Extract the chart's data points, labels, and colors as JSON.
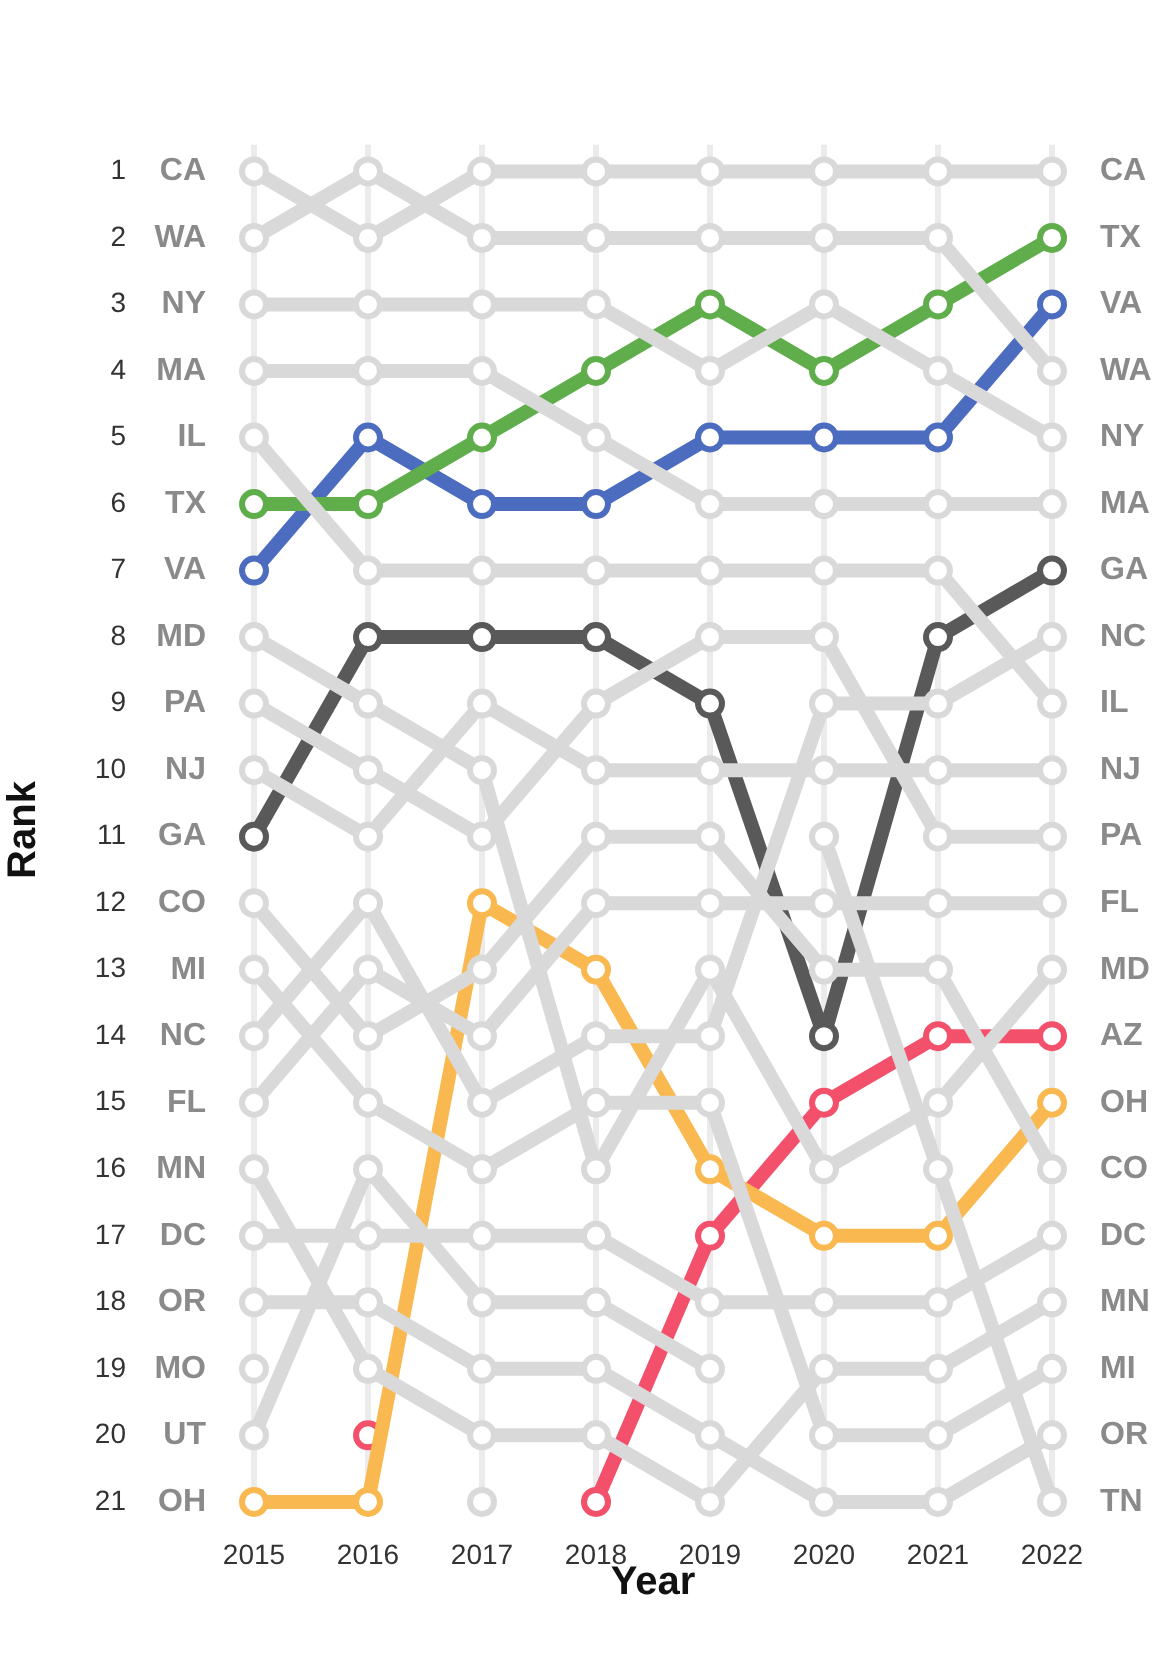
{
  "chart_data": {
    "type": "line",
    "xlabel": "Year",
    "ylabel": "Rank",
    "categories": [
      "2015",
      "2016",
      "2017",
      "2018",
      "2019",
      "2020",
      "2021",
      "2022"
    ],
    "ylim": [
      21.2,
      0.6
    ],
    "yticks": [
      1,
      2,
      3,
      4,
      5,
      6,
      7,
      8,
      9,
      10,
      11,
      12,
      13,
      14,
      15,
      16,
      17,
      18,
      19,
      20,
      21
    ],
    "grid": "x",
    "legend": false,
    "marker": "circle",
    "line_style": "solid",
    "series": [
      {
        "name": "CA",
        "color": "#d9d9d9",
        "values": [
          1,
          2,
          1,
          1,
          1,
          1,
          1,
          1
        ]
      },
      {
        "name": "WA",
        "color": "#d9d9d9",
        "values": [
          2,
          1,
          2,
          2,
          2,
          2,
          2,
          4
        ]
      },
      {
        "name": "NY",
        "color": "#d9d9d9",
        "values": [
          3,
          3,
          3,
          3,
          4,
          3,
          4,
          5
        ]
      },
      {
        "name": "MA",
        "color": "#d9d9d9",
        "values": [
          4,
          4,
          4,
          5,
          6,
          6,
          6,
          6
        ]
      },
      {
        "name": "IL",
        "color": "#d9d9d9",
        "values": [
          5,
          7,
          7,
          7,
          7,
          7,
          7,
          9
        ]
      },
      {
        "name": "MD",
        "color": "#d9d9d9",
        "values": [
          8,
          9,
          10,
          16,
          13,
          16,
          15,
          13
        ]
      },
      {
        "name": "PA",
        "color": "#d9d9d9",
        "values": [
          9,
          10,
          11,
          9,
          8,
          8,
          11,
          11
        ]
      },
      {
        "name": "NJ",
        "color": "#d9d9d9",
        "values": [
          10,
          11,
          9,
          10,
          10,
          10,
          10,
          10
        ]
      },
      {
        "name": "CO",
        "color": "#d9d9d9",
        "values": [
          12,
          14,
          13,
          11,
          11,
          13,
          13,
          16
        ]
      },
      {
        "name": "MI",
        "color": "#d9d9d9",
        "values": [
          13,
          15,
          16,
          15,
          15,
          20,
          20,
          19
        ]
      },
      {
        "name": "NC",
        "color": "#d9d9d9",
        "values": [
          14,
          12,
          15,
          14,
          14,
          9,
          9,
          8
        ]
      },
      {
        "name": "FL",
        "color": "#d9d9d9",
        "values": [
          15,
          13,
          14,
          12,
          12,
          12,
          12,
          12
        ]
      },
      {
        "name": "MN",
        "color": "#d9d9d9",
        "values": [
          16,
          19,
          20,
          20,
          21,
          19,
          19,
          18
        ]
      },
      {
        "name": "DC",
        "color": "#d9d9d9",
        "values": [
          17,
          17,
          17,
          17,
          18,
          18,
          18,
          17
        ]
      },
      {
        "name": "OR",
        "color": "#d9d9d9",
        "values": [
          18,
          18,
          19,
          19,
          20,
          21,
          21,
          20
        ]
      },
      {
        "name": "MO",
        "color": "#d9d9d9",
        "values": [
          19,
          null,
          21,
          null,
          null,
          null,
          null,
          null
        ]
      },
      {
        "name": "UT",
        "color": "#d9d9d9",
        "values": [
          20,
          16,
          18,
          18,
          19,
          null,
          null,
          null
        ]
      },
      {
        "name": "TN",
        "color": "#d9d9d9",
        "values": [
          null,
          null,
          null,
          null,
          null,
          11,
          16,
          21
        ]
      },
      {
        "name": "TX",
        "color": "#5fae4b",
        "values": [
          6,
          6,
          5,
          4,
          3,
          4,
          3,
          2
        ]
      },
      {
        "name": "VA",
        "color": "#4c6cc0",
        "values": [
          7,
          5,
          6,
          6,
          5,
          5,
          5,
          3
        ]
      },
      {
        "name": "GA",
        "color": "#595959",
        "values": [
          11,
          8,
          8,
          8,
          9,
          14,
          8,
          7
        ]
      },
      {
        "name": "OH",
        "color": "#f9b950",
        "values": [
          21,
          21,
          12,
          13,
          16,
          17,
          17,
          15
        ]
      },
      {
        "name": "AZ",
        "color": "#f2506b",
        "values": [
          null,
          20,
          null,
          21,
          17,
          15,
          14,
          14
        ]
      }
    ]
  }
}
